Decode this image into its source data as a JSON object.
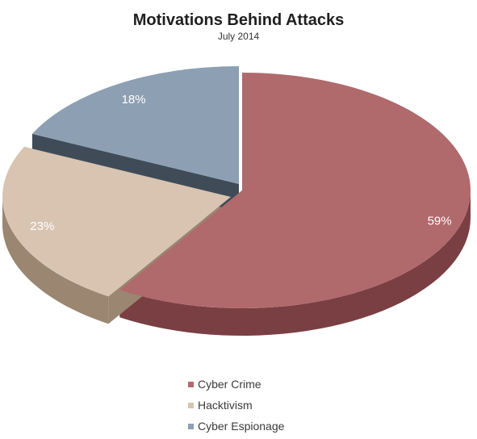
{
  "chart_data": {
    "type": "pie",
    "title": "Motivations Behind Attacks",
    "subtitle": "July 2014",
    "categories": [
      "Cyber Crime",
      "Hacktivism",
      "Cyber Espionage"
    ],
    "values": [
      59,
      23,
      18
    ],
    "value_labels": [
      "59%",
      "23%",
      "18%"
    ],
    "colors": [
      "#b06a6c",
      "#d8c4b0",
      "#8d9fb3"
    ],
    "side_colors": [
      "#7a3f43",
      "#9a8671",
      "#3f4c58"
    ],
    "style": "3d-exploded",
    "legend_position": "bottom"
  }
}
